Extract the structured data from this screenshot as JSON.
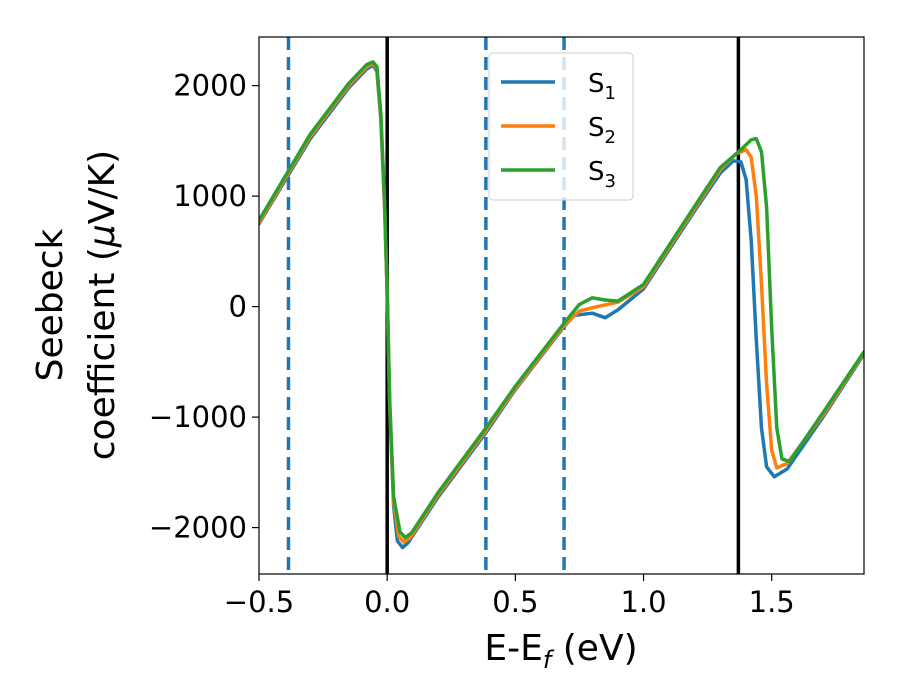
{
  "chart_data": {
    "type": "line",
    "xlabel": {
      "main": "E-E",
      "sub": "f",
      "unit": " (eV)"
    },
    "ylabel": {
      "line1": "Seebeck",
      "line2_pre": "coefficient  (",
      "mu": "μ",
      "line2_post": "V/K)"
    },
    "xlim": [
      -0.5,
      1.86
    ],
    "ylim": [
      -2420,
      2440
    ],
    "xticks": [
      {
        "value": -0.5,
        "label": "−0.5"
      },
      {
        "value": 0.0,
        "label": "0.0"
      },
      {
        "value": 0.5,
        "label": "0.5"
      },
      {
        "value": 1.0,
        "label": "1.0"
      },
      {
        "value": 1.5,
        "label": "1.5"
      }
    ],
    "yticks": [
      {
        "value": 2000,
        "label": "2000"
      },
      {
        "value": 1000,
        "label": "1000"
      },
      {
        "value": 0,
        "label": "0"
      },
      {
        "value": -1000,
        "label": "−1000"
      },
      {
        "value": -2000,
        "label": "−2000"
      }
    ],
    "grid": false,
    "legend_position": "top-center",
    "vlines": [
      {
        "x": -0.385,
        "style": "dashed",
        "color": "#1f77b4"
      },
      {
        "x": 0.0,
        "style": "solid",
        "color": "#000000"
      },
      {
        "x": 0.385,
        "style": "dashed",
        "color": "#1f77b4"
      },
      {
        "x": 0.69,
        "style": "dashed",
        "color": "#1f77b4"
      },
      {
        "x": 1.37,
        "style": "solid",
        "color": "#000000"
      }
    ],
    "series": [
      {
        "name": "S",
        "sub": "1",
        "color": "#1f77b4",
        "points": [
          [
            -0.5,
            750
          ],
          [
            -0.3,
            1520
          ],
          [
            -0.15,
            1980
          ],
          [
            -0.08,
            2150
          ],
          [
            -0.055,
            2185
          ],
          [
            -0.04,
            2130
          ],
          [
            -0.025,
            1700
          ],
          [
            -0.01,
            900
          ],
          [
            0.0,
            100
          ],
          [
            0.01,
            -900
          ],
          [
            0.025,
            -1800
          ],
          [
            0.04,
            -2120
          ],
          [
            0.06,
            -2180
          ],
          [
            0.08,
            -2140
          ],
          [
            0.2,
            -1720
          ],
          [
            0.385,
            -1140
          ],
          [
            0.5,
            -750
          ],
          [
            0.69,
            -180
          ],
          [
            0.73,
            -80
          ],
          [
            0.8,
            -60
          ],
          [
            0.85,
            -100
          ],
          [
            0.9,
            -30
          ],
          [
            1.0,
            160
          ],
          [
            1.2,
            870
          ],
          [
            1.3,
            1210
          ],
          [
            1.35,
            1320
          ],
          [
            1.38,
            1310
          ],
          [
            1.4,
            1150
          ],
          [
            1.42,
            600
          ],
          [
            1.44,
            -300
          ],
          [
            1.46,
            -1100
          ],
          [
            1.48,
            -1450
          ],
          [
            1.51,
            -1540
          ],
          [
            1.56,
            -1470
          ],
          [
            1.7,
            -1000
          ],
          [
            1.86,
            -430
          ]
        ]
      },
      {
        "name": "S",
        "sub": "2",
        "color": "#ff7f0e",
        "points": [
          [
            -0.5,
            760
          ],
          [
            -0.3,
            1540
          ],
          [
            -0.15,
            2000
          ],
          [
            -0.08,
            2170
          ],
          [
            -0.055,
            2200
          ],
          [
            -0.04,
            2150
          ],
          [
            -0.025,
            1720
          ],
          [
            -0.01,
            920
          ],
          [
            0.0,
            120
          ],
          [
            0.01,
            -880
          ],
          [
            0.025,
            -1760
          ],
          [
            0.045,
            -2080
          ],
          [
            0.065,
            -2130
          ],
          [
            0.09,
            -2090
          ],
          [
            0.2,
            -1700
          ],
          [
            0.385,
            -1120
          ],
          [
            0.5,
            -740
          ],
          [
            0.69,
            -170
          ],
          [
            0.75,
            -40
          ],
          [
            0.82,
            0
          ],
          [
            0.9,
            40
          ],
          [
            1.0,
            180
          ],
          [
            1.2,
            890
          ],
          [
            1.3,
            1240
          ],
          [
            1.36,
            1380
          ],
          [
            1.4,
            1420
          ],
          [
            1.42,
            1350
          ],
          [
            1.44,
            1000
          ],
          [
            1.46,
            200
          ],
          [
            1.48,
            -700
          ],
          [
            1.5,
            -1300
          ],
          [
            1.52,
            -1460
          ],
          [
            1.56,
            -1420
          ],
          [
            1.7,
            -980
          ],
          [
            1.86,
            -420
          ]
        ]
      },
      {
        "name": "S",
        "sub": "3",
        "color": "#2ca02c",
        "points": [
          [
            -0.5,
            780
          ],
          [
            -0.3,
            1560
          ],
          [
            -0.15,
            2020
          ],
          [
            -0.08,
            2190
          ],
          [
            -0.055,
            2215
          ],
          [
            -0.04,
            2170
          ],
          [
            -0.025,
            1750
          ],
          [
            -0.01,
            950
          ],
          [
            0.0,
            150
          ],
          [
            0.01,
            -850
          ],
          [
            0.025,
            -1720
          ],
          [
            0.05,
            -2040
          ],
          [
            0.07,
            -2090
          ],
          [
            0.095,
            -2050
          ],
          [
            0.2,
            -1680
          ],
          [
            0.385,
            -1100
          ],
          [
            0.5,
            -720
          ],
          [
            0.69,
            -150
          ],
          [
            0.75,
            20
          ],
          [
            0.8,
            80
          ],
          [
            0.85,
            60
          ],
          [
            0.9,
            50
          ],
          [
            1.0,
            200
          ],
          [
            1.2,
            910
          ],
          [
            1.3,
            1260
          ],
          [
            1.38,
            1420
          ],
          [
            1.42,
            1510
          ],
          [
            1.44,
            1520
          ],
          [
            1.46,
            1400
          ],
          [
            1.48,
            900
          ],
          [
            1.5,
            -200
          ],
          [
            1.52,
            -1100
          ],
          [
            1.54,
            -1380
          ],
          [
            1.57,
            -1400
          ],
          [
            1.7,
            -960
          ],
          [
            1.86,
            -410
          ]
        ]
      }
    ]
  }
}
